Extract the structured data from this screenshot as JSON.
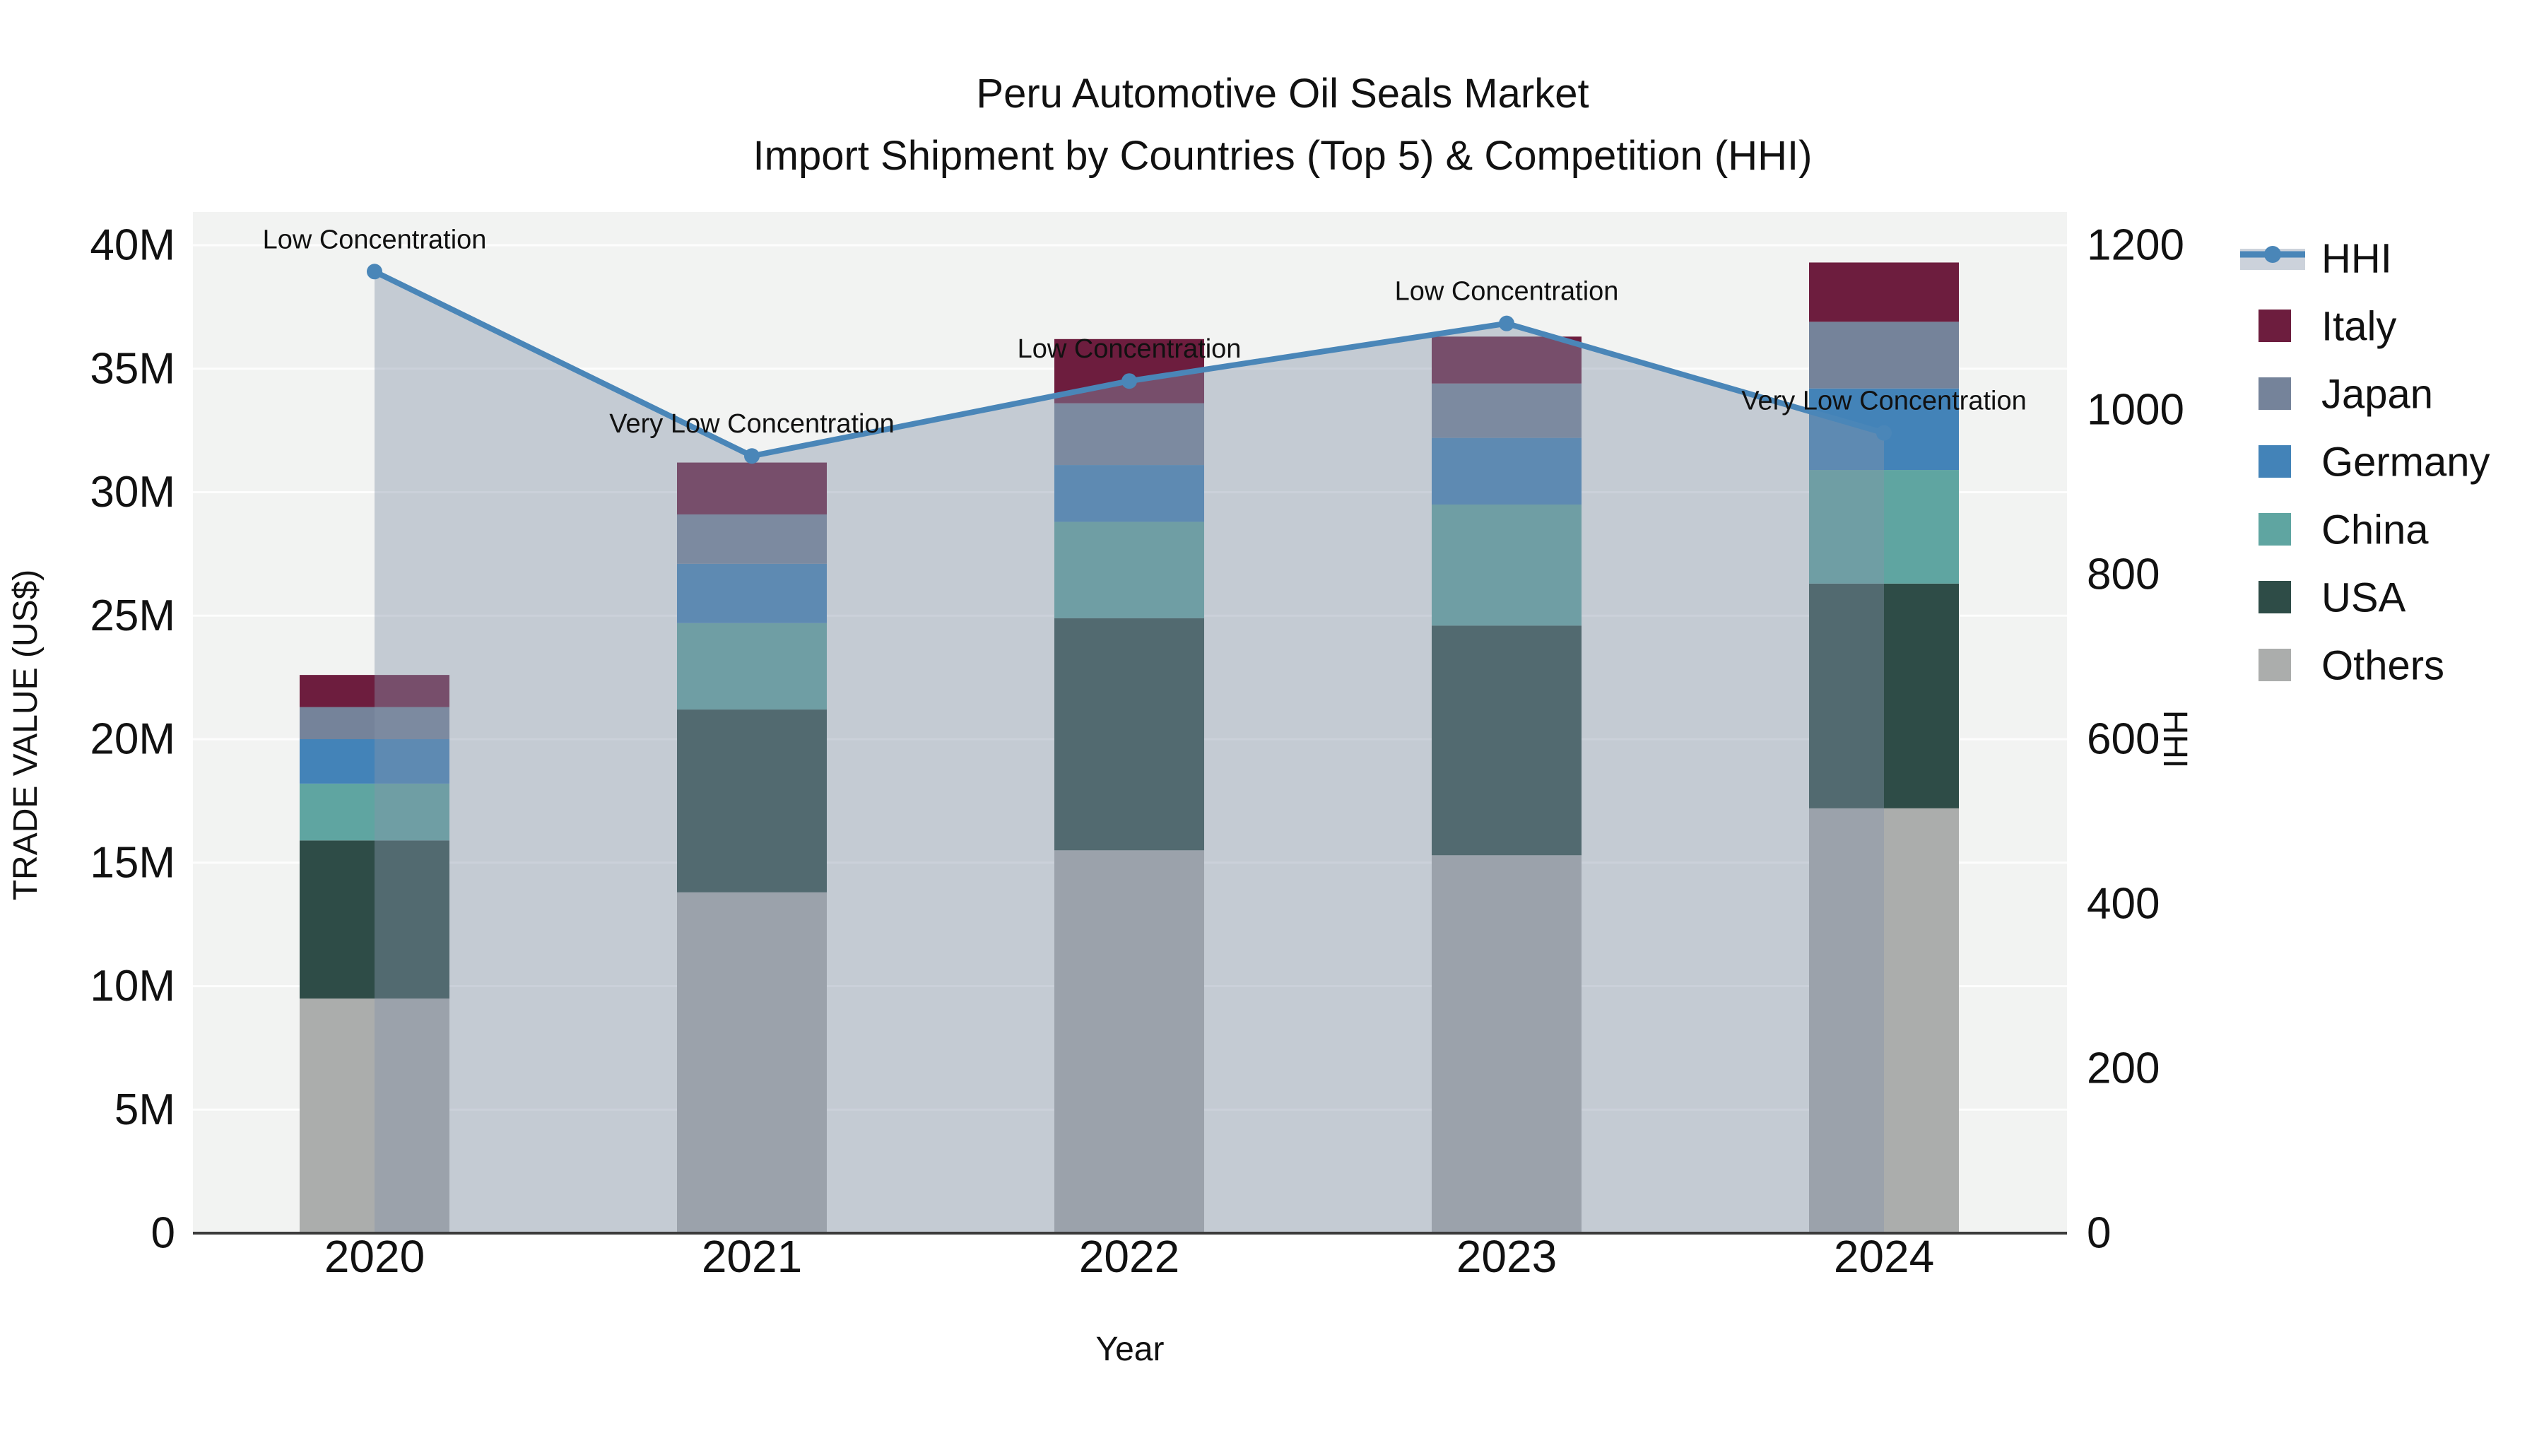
{
  "chart_data": {
    "type": [
      "bar",
      "line"
    ],
    "title": "Peru Automotive Oil Seals Market",
    "subtitle": "Import Shipment by Countries (Top 5) & Competition (HHI)",
    "categories": [
      "2020",
      "2021",
      "2022",
      "2023",
      "2024"
    ],
    "xlabel": "Year",
    "ylabel_left": "TRADE VALUE (US$)",
    "ylabel_right": "HHI",
    "bar_value_unit": "millions of US$",
    "bar_mode": "stacked",
    "ylim_left_millions": [
      0,
      40
    ],
    "ylim_right": [
      0,
      1200
    ],
    "grid": true,
    "legend_position": "right",
    "yticks_left": [
      {
        "v": 0,
        "label": "0"
      },
      {
        "v": 5,
        "label": "5M"
      },
      {
        "v": 10,
        "label": "10M"
      },
      {
        "v": 15,
        "label": "15M"
      },
      {
        "v": 20,
        "label": "20M"
      },
      {
        "v": 25,
        "label": "25M"
      },
      {
        "v": 30,
        "label": "30M"
      },
      {
        "v": 35,
        "label": "35M"
      },
      {
        "v": 40,
        "label": "40M"
      }
    ],
    "yticks_right": [
      {
        "v": 0,
        "label": "0"
      },
      {
        "v": 200,
        "label": "200"
      },
      {
        "v": 400,
        "label": "400"
      },
      {
        "v": 600,
        "label": "600"
      },
      {
        "v": 800,
        "label": "800"
      },
      {
        "v": 1000,
        "label": "1000"
      },
      {
        "v": 1200,
        "label": "1200"
      }
    ],
    "series": [
      {
        "name": "Italy",
        "color": "#6d1d3e",
        "values_millions": [
          1.3,
          2.1,
          2.6,
          1.9,
          2.4
        ]
      },
      {
        "name": "Japan",
        "color": "#75839a",
        "values_millions": [
          1.3,
          2.0,
          2.5,
          2.2,
          2.7
        ]
      },
      {
        "name": "Germany",
        "color": "#4383b8",
        "values_millions": [
          1.8,
          2.4,
          2.3,
          2.7,
          3.3
        ]
      },
      {
        "name": "China",
        "color": "#5fa5a1",
        "values_millions": [
          2.3,
          3.5,
          3.9,
          4.9,
          4.6
        ]
      },
      {
        "name": "USA",
        "color": "#2e4c47",
        "values_millions": [
          6.4,
          7.4,
          9.4,
          9.3,
          9.1
        ]
      },
      {
        "name": "Others",
        "color": "#abadac",
        "values_millions": [
          9.5,
          13.8,
          15.5,
          15.3,
          17.2
        ]
      }
    ],
    "stack_order_bottom_to_top": [
      "Others",
      "USA",
      "China",
      "Germany",
      "Japan",
      "Italy"
    ],
    "line_series": {
      "name": "HHI",
      "color": "#4a86b8",
      "fill_color": "rgba(133,148,170,0.42)",
      "values": [
        1168,
        944,
        1035,
        1105,
        972
      ]
    },
    "annotations": [
      {
        "category": "2020",
        "text": "Low Concentration"
      },
      {
        "category": "2021",
        "text": "Very Low Concentration"
      },
      {
        "category": "2022",
        "text": "Low Concentration"
      },
      {
        "category": "2023",
        "text": "Low Concentration"
      },
      {
        "category": "2024",
        "text": "Very Low Concentration"
      }
    ],
    "legend_items": [
      "HHI",
      "Italy",
      "Japan",
      "Germany",
      "China",
      "USA",
      "Others"
    ]
  },
  "style_colors": {
    "plot_background": "#f2f3f2",
    "grid_line": "#ffffff",
    "axis_line": "#3b3b3b",
    "text": "#111111"
  }
}
